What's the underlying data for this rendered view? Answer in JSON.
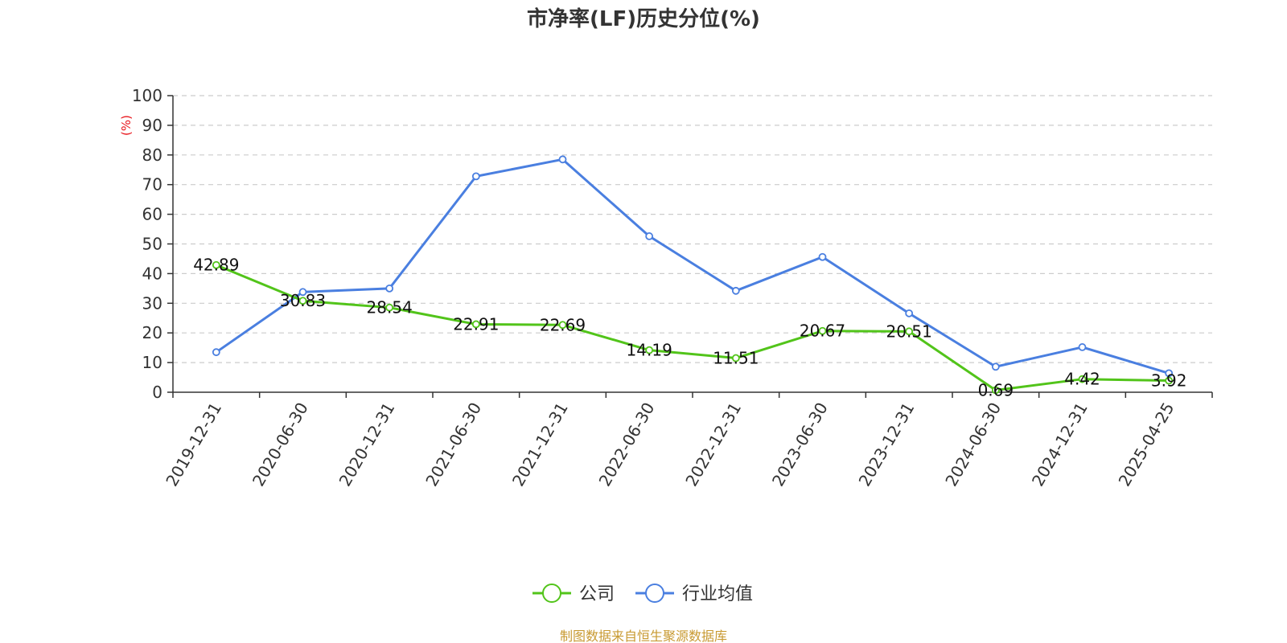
{
  "chart_data": {
    "type": "line",
    "title": "市净率(LF)历史分位(%)",
    "ylabel": "(%)",
    "xlabel": "",
    "ylim": [
      0,
      100
    ],
    "ytick_step": 10,
    "yticks": [
      "0",
      "10",
      "20",
      "30",
      "40",
      "50",
      "60",
      "70",
      "80",
      "90",
      "100"
    ],
    "grid": true,
    "legend_position": "bottom-center",
    "categories": [
      "2019-12-31",
      "2020-06-30",
      "2020-12-31",
      "2021-06-30",
      "2021-12-31",
      "2022-06-30",
      "2022-12-31",
      "2023-06-30",
      "2023-12-31",
      "2024-06-30",
      "2024-12-31",
      "2025-04-25"
    ],
    "series": [
      {
        "name": "公司",
        "color": "#52c41a",
        "values": [
          42.89,
          30.83,
          28.54,
          22.91,
          22.69,
          14.19,
          11.51,
          20.67,
          20.51,
          0.69,
          4.42,
          3.92
        ],
        "labels": [
          "42.89",
          "30.83",
          "28.54",
          "22.91",
          "22.69",
          "14.19",
          "11.51",
          "20.67",
          "20.51",
          "0.69",
          "4.42",
          "3.92"
        ]
      },
      {
        "name": "行业均值",
        "color": "#4a7fe0",
        "values": [
          13.5,
          33.8,
          35.0,
          72.8,
          78.5,
          52.6,
          34.2,
          45.6,
          26.6,
          8.6,
          15.2,
          6.4
        ]
      }
    ],
    "ylabel_color": "#e8141a",
    "source_note": "制图数据来自恒生聚源数据库",
    "source_color": "#c89a32"
  }
}
